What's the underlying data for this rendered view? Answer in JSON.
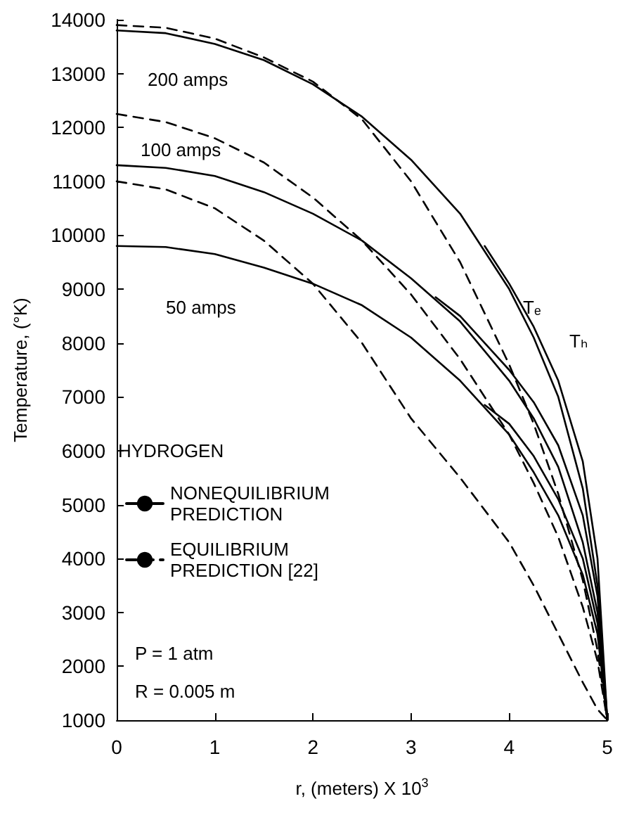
{
  "chart_data": {
    "type": "line",
    "xlabel": "r, (meters) X 10$^{3}$",
    "ylabel": "Temperature, (°K)",
    "legend_title": "HYDROGEN",
    "xlim": [
      0,
      5
    ],
    "xticks": [
      0,
      1,
      2,
      3,
      4,
      5
    ],
    "ylim": [
      1000,
      14000
    ],
    "yticks": [
      1000,
      2000,
      3000,
      4000,
      5000,
      6000,
      7000,
      8000,
      9000,
      10000,
      11000,
      12000,
      13000,
      14000
    ],
    "grid": false,
    "legend": "left",
    "marker": "none",
    "x": [
      0,
      0.5,
      1,
      1.5,
      2,
      2.5,
      3,
      3.5,
      4,
      4.25,
      4.5,
      4.75,
      4.9,
      5
    ],
    "series": [
      {
        "name": "NONEQUILIBRIUM PREDICTION",
        "color": "#000000",
        "line_style": "solid",
        "values": [
          13800,
          13750,
          13550,
          13250,
          12800,
          12200,
          11400,
          10400,
          9000,
          8100,
          7000,
          5300,
          3500,
          1000
        ]
      },
      {
        "color": "#000000",
        "line_style": "solid",
        "x": [
          3.75,
          4,
          4.25,
          4.5,
          4.75,
          4.9,
          5
        ],
        "values": [
          9800,
          9100,
          8300,
          7300,
          5800,
          4000,
          1000
        ]
      },
      {
        "name": "EQUILIBRIUM PREDICTION [22]",
        "color": "#000000",
        "line_style": "dashed",
        "values": [
          13900,
          13850,
          13650,
          13300,
          12850,
          12150,
          11000,
          9500,
          7600,
          6500,
          5200,
          3600,
          2300,
          1000
        ]
      },
      {
        "color": "#000000",
        "line_style": "solid",
        "values": [
          11300,
          11250,
          11100,
          10800,
          10400,
          9900,
          9200,
          8400,
          7300,
          6600,
          5700,
          4300,
          3000,
          1000
        ]
      },
      {
        "color": "#000000",
        "line_style": "solid",
        "x": [
          3.25,
          3.5,
          4,
          4.25,
          4.5,
          4.75,
          4.9,
          5
        ],
        "values": [
          8850,
          8500,
          7500,
          6900,
          6100,
          4800,
          3300,
          1000
        ]
      },
      {
        "color": "#000000",
        "line_style": "dashed",
        "values": [
          12250,
          12100,
          11800,
          11350,
          10700,
          9900,
          8900,
          7700,
          6300,
          5400,
          4400,
          3100,
          2100,
          1000
        ]
      },
      {
        "color": "#000000",
        "line_style": "solid",
        "values": [
          9800,
          9780,
          9650,
          9400,
          9100,
          8700,
          8100,
          7300,
          6300,
          5600,
          4800,
          3700,
          2600,
          1000
        ]
      },
      {
        "color": "#000000",
        "line_style": "solid",
        "x": [
          3.75,
          4,
          4.25,
          4.5,
          4.75,
          4.9,
          5
        ],
        "values": [
          6850,
          6500,
          5900,
          5100,
          4000,
          2800,
          1000
        ]
      },
      {
        "color": "#000000",
        "line_style": "dashed",
        "values": [
          11000,
          10850,
          10500,
          9900,
          9100,
          8000,
          6600,
          5500,
          4300,
          3500,
          2600,
          1700,
          1200,
          1000
        ]
      }
    ],
    "annotations": [
      "200 amps",
      "100 amps",
      "50 amps",
      "Tₑ",
      "Tₕ",
      "P = 1 atm",
      "R = 0.005 m"
    ]
  }
}
